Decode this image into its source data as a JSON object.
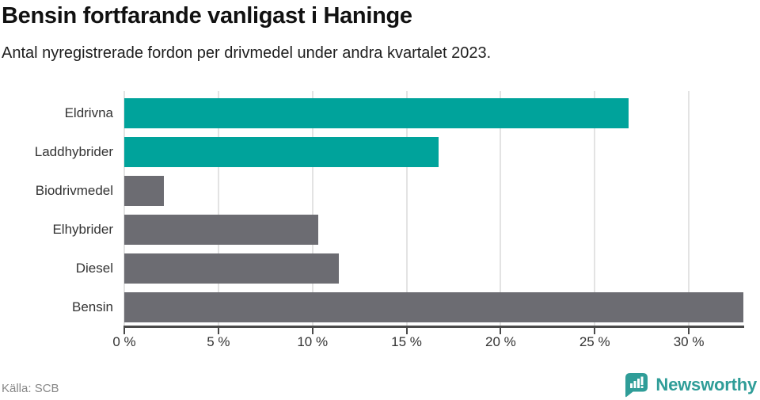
{
  "header": {
    "title": "Bensin fortfarande vanligast i Haninge",
    "subtitle": "Antal nyregistrerade fordon per drivmedel under andra kvartalet 2023."
  },
  "chart_data": {
    "type": "bar",
    "orientation": "horizontal",
    "title": "Bensin fortfarande vanligast i Haninge",
    "subtitle": "Antal nyregistrerade fordon per drivmedel under andra kvartalet 2023.",
    "categories": [
      "Eldrivna",
      "Laddhybrider",
      "Biodrivmedel",
      "Elhybrider",
      "Diesel",
      "Bensin"
    ],
    "values": [
      26.8,
      16.7,
      2.1,
      10.3,
      11.4,
      32.9
    ],
    "unit": "%",
    "xlabel": "",
    "ylabel": "",
    "xlim": [
      0,
      32.9
    ],
    "xticks": [
      0,
      5,
      10,
      15,
      20,
      25,
      30
    ],
    "xtick_labels": [
      "0 %",
      "5 %",
      "10 %",
      "15 %",
      "20 %",
      "25 %",
      "30 %"
    ],
    "bar_colors": [
      "#00a39b",
      "#00a39b",
      "#6c6c72",
      "#6c6c72",
      "#6c6c72",
      "#6c6c72"
    ],
    "grid": true,
    "legend": "none"
  },
  "colors": {
    "highlight_teal": "#00a39b",
    "bar_gray": "#6c6c72",
    "gridline": "#e3e3e3",
    "axis": "#4a4a4a",
    "brand_teal": "#2f9d98"
  },
  "footer": {
    "source": "Källa: SCB",
    "brand": "Newsworthy"
  }
}
